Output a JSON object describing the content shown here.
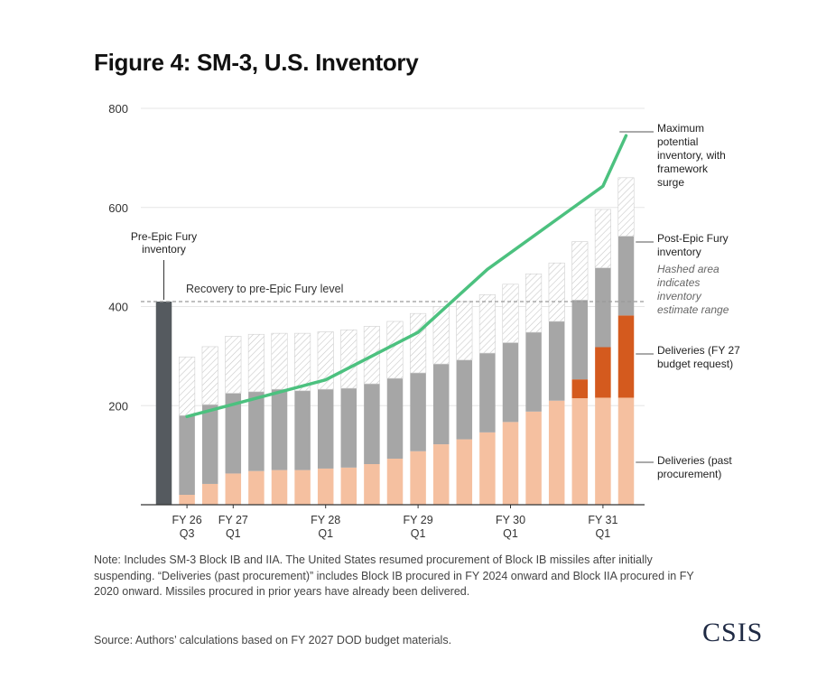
{
  "title": "Figure 4: SM-3, U.S. Inventory",
  "note": "Note: Includes SM-3 Block IB and IIA. The United States resumed procurement of Block IB missiles after initially suspending. “Deliveries (past procurement)” includes Block IB procured in FY 2024 onward and Block IIA procured in FY 2020 onward. Missiles procured in prior years have already been delivered.",
  "source": "Source: Authors’ calculations based on FY 2027 DOD budget materials.",
  "logo": "CSIS",
  "colors": {
    "pre_epic": "#555a5f",
    "past_deliveries": "#f5c0a0",
    "fy27_deliveries": "#d45a1e",
    "post_epic": "#a6a6a6",
    "hatch": "#c8c8c8",
    "max_line": "#4cc17f",
    "recovery_line": "#9a9a9a"
  },
  "chart_data": {
    "type": "bar",
    "stacked": true,
    "ylim": [
      0,
      800
    ],
    "yticks": [
      "200",
      "400",
      "600",
      "800"
    ],
    "ytick_values": [
      200,
      400,
      600,
      800
    ],
    "grid": true,
    "x_tick_labels": [
      {
        "index": 1,
        "line1": "FY 26",
        "line2": "Q3"
      },
      {
        "index": 3,
        "line1": "FY 27",
        "line2": "Q1"
      },
      {
        "index": 7,
        "line1": "FY 28",
        "line2": "Q1"
      },
      {
        "index": 11,
        "line1": "FY 29",
        "line2": "Q1"
      },
      {
        "index": 15,
        "line1": "FY 30",
        "line2": "Q1"
      },
      {
        "index": 19,
        "line1": "FY 31",
        "line2": "Q1"
      }
    ],
    "pre_epic_fury_inventory": 410,
    "pre_epic_label": [
      "Pre-Epic Fury",
      "inventory"
    ],
    "recovery_level": 410,
    "recovery_label": "Recovery to pre-Epic Fury level",
    "series": [
      {
        "name": "Deliveries (past procurement)",
        "values": [
          0,
          20,
          42,
          63,
          68,
          70,
          70,
          73,
          75,
          82,
          93,
          108,
          122,
          132,
          146,
          167,
          188,
          210,
          215,
          216,
          216
        ]
      },
      {
        "name": "Deliveries (FY 27 budget request)",
        "values": [
          0,
          0,
          0,
          0,
          0,
          0,
          0,
          0,
          0,
          0,
          0,
          0,
          0,
          0,
          0,
          0,
          0,
          0,
          38,
          102,
          166
        ]
      },
      {
        "name": "Post-Epic Fury inventory",
        "values": [
          0,
          160,
          160,
          162,
          160,
          163,
          160,
          160,
          160,
          162,
          162,
          158,
          162,
          160,
          160,
          160,
          160,
          160,
          160,
          160,
          160
        ]
      },
      {
        "name": "Hashed area indicates inventory estimate range",
        "values": [
          0,
          118,
          117,
          115,
          116,
          113,
          116,
          116,
          118,
          116,
          115,
          120,
          116,
          118,
          118,
          118,
          118,
          118,
          118,
          118,
          118
        ]
      }
    ],
    "max_potential_line": {
      "name": "Maximum potential inventory, with framework surge",
      "x_index": [
        1,
        7,
        11,
        14,
        19,
        20
      ],
      "values": [
        178,
        252,
        348,
        475,
        643,
        745
      ]
    },
    "legend": {
      "max": [
        "Maximum",
        "potential",
        "inventory, with",
        "framework",
        "surge"
      ],
      "post": [
        "Post-Epic Fury",
        "inventory"
      ],
      "hatch": [
        "Hashed area",
        "indicates",
        "inventory",
        "estimate range"
      ],
      "fy27": [
        "Deliveries (FY 27",
        "budget request)"
      ],
      "past": [
        "Deliveries (past",
        "procurement)"
      ]
    }
  }
}
